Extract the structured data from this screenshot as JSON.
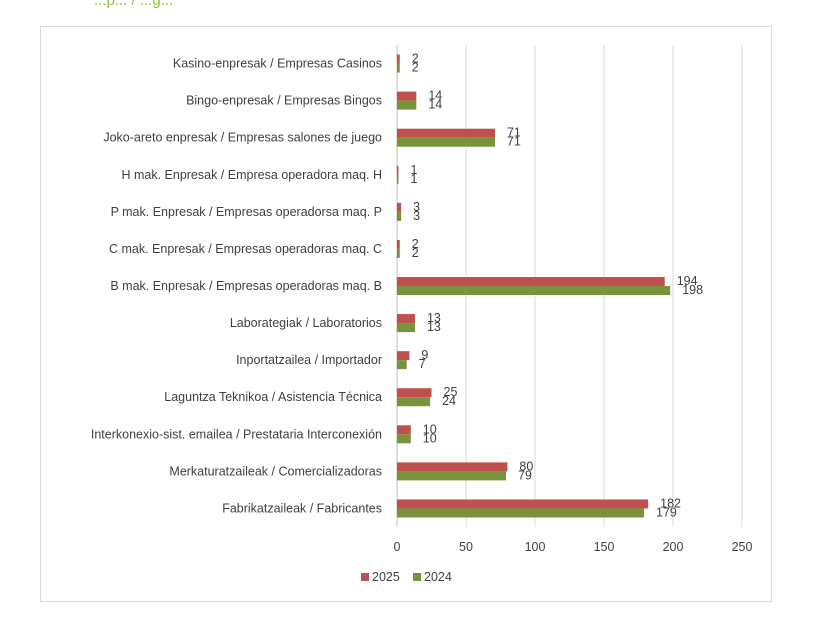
{
  "header": {
    "partial_text": "...p... / ...g..."
  },
  "chart_data": {
    "type": "bar",
    "orientation": "horizontal",
    "categories": [
      "Kasino-enpresak / Empresas Casinos",
      "Bingo-enpresak / Empresas Bingos",
      "Joko-areto enpresak / Empresas salones de juego",
      "H mak. Enpresak / Empresa operadora maq. H",
      "P mak. Enpresak / Empresas operadorsa maq. P",
      "C mak. Enpresak / Empresas operadoras maq. C",
      "B mak. Enpresak / Empresas operadoras maq. B",
      "Laborategiak / Laboratorios",
      "Inportatzailea / Importador",
      "Laguntza Teknikoa / Asistencia Técnica",
      "Interkonexio-sist. emailea /  Prestataria Interconexión",
      "Merkaturatzaileak / Comercializadoras",
      "Fabrikatzaileak / Fabricantes"
    ],
    "series": [
      {
        "name": "2025",
        "color": "#c0504d",
        "values": [
          2,
          14,
          71,
          1,
          3,
          2,
          194,
          13,
          9,
          25,
          10,
          80,
          182
        ]
      },
      {
        "name": "2024",
        "color": "#77933c",
        "values": [
          2,
          14,
          71,
          1,
          3,
          2,
          198,
          13,
          7,
          24,
          10,
          79,
          179
        ]
      }
    ],
    "xlim": [
      0,
      250
    ],
    "xticks": [
      0,
      50,
      100,
      150,
      200,
      250
    ],
    "xtick_labels": [
      "0",
      "50",
      "100",
      "150",
      "200",
      "250"
    ],
    "grid": "vertical",
    "legend": "bottom",
    "data_labels": true
  }
}
